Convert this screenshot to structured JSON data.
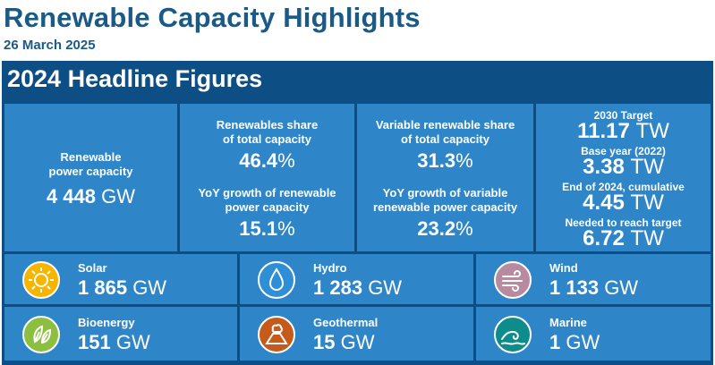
{
  "header": {
    "title": "Renewable Capacity Highlights",
    "date": "26 March 2025"
  },
  "panel": {
    "heading": "2024 Headline Figures"
  },
  "capacity": {
    "label_line1": "Renewable",
    "label_line2": "power capacity",
    "value": "4 448",
    "unit": "GW"
  },
  "share_renewables": {
    "label_line1": "Renewables share",
    "label_line2": "of total capacity",
    "value": "46.4",
    "unit": "%"
  },
  "growth_renewables": {
    "label_line1": "YoY growth of renewable",
    "label_line2": "power capacity",
    "value": "15.1",
    "unit": "%"
  },
  "share_variable": {
    "label_line1": "Variable renewable share",
    "label_line2": "of total capacity",
    "value": "31.3",
    "unit": "%"
  },
  "growth_variable": {
    "label_line1": "YoY growth of variable",
    "label_line2": "renewable power capacity",
    "value": "23.2",
    "unit": "%"
  },
  "target": {
    "target_label": "2030 Target",
    "target_value": "11.17",
    "base_label": "Base year (2022)",
    "base_value": "3.38",
    "cumulative_label": "End of 2024, cumulative",
    "cumulative_value": "4.45",
    "needed_label": "Needed to reach target",
    "needed_value": "6.72",
    "unit": "TW"
  },
  "technologies": [
    {
      "name": "Solar",
      "value": "1 865",
      "unit": "GW",
      "icon": "sun-icon",
      "color": "#f7b500"
    },
    {
      "name": "Hydro",
      "value": "1 283",
      "unit": "GW",
      "icon": "water-drop-icon",
      "color": "#2f8fd6"
    },
    {
      "name": "Wind",
      "value": "1 133",
      "unit": "GW",
      "icon": "wind-icon",
      "color": "#b78aa0"
    },
    {
      "name": "Bioenergy",
      "value": "151",
      "unit": "GW",
      "icon": "leaf-icon",
      "color": "#8cbf3f"
    },
    {
      "name": "Geothermal",
      "value": "15",
      "unit": "GW",
      "icon": "volcano-icon",
      "color": "#c65a1a"
    },
    {
      "name": "Marine",
      "value": "1",
      "unit": "GW",
      "icon": "wave-icon",
      "color": "#0e8c8c"
    }
  ]
}
